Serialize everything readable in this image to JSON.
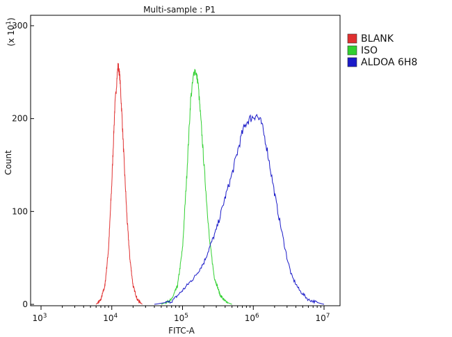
{
  "chart_data": {
    "type": "line",
    "title": "Multi-sample : P1",
    "xlabel": "FITC-A",
    "ylabel": "Count",
    "y_multiplier_label": "(x 10",
    "y_multiplier_exp": "1",
    "y_multiplier_close": ")",
    "x_scale": "log",
    "xlim": [
      1000,
      10000000
    ],
    "ylim": [
      0,
      300
    ],
    "x_ticks": [
      {
        "base": "10",
        "exp": "3",
        "value": 1000
      },
      {
        "base": "10",
        "exp": "4",
        "value": 10000
      },
      {
        "base": "10",
        "exp": "5",
        "value": 100000
      },
      {
        "base": "10",
        "exp": "6",
        "value": 1000000
      },
      {
        "base": "10",
        "exp": "7",
        "value": 10000000
      }
    ],
    "y_ticks": [
      "0",
      "100",
      "200",
      "300"
    ],
    "y_tick_values": [
      0,
      100,
      200,
      300
    ],
    "legend": {
      "placement": "top-right outside"
    },
    "series": [
      {
        "name": "BLANK",
        "color": "#e03030",
        "peak_x": 12300,
        "peak_y": 258,
        "points": [
          [
            6000,
            0
          ],
          [
            7000,
            5
          ],
          [
            8000,
            20
          ],
          [
            9000,
            60
          ],
          [
            10000,
            130
          ],
          [
            11000,
            210
          ],
          [
            12000,
            250
          ],
          [
            12300,
            258
          ],
          [
            13000,
            245
          ],
          [
            14000,
            200
          ],
          [
            15000,
            150
          ],
          [
            16500,
            90
          ],
          [
            18000,
            50
          ],
          [
            20000,
            20
          ],
          [
            23000,
            5
          ],
          [
            27000,
            0
          ]
        ]
      },
      {
        "name": "ISO",
        "color": "#30d030",
        "peak_x": 150000,
        "peak_y": 253,
        "points": [
          [
            50000,
            0
          ],
          [
            70000,
            5
          ],
          [
            85000,
            20
          ],
          [
            100000,
            60
          ],
          [
            115000,
            140
          ],
          [
            130000,
            220
          ],
          [
            145000,
            250
          ],
          [
            150000,
            253
          ],
          [
            165000,
            240
          ],
          [
            185000,
            190
          ],
          [
            210000,
            130
          ],
          [
            240000,
            70
          ],
          [
            280000,
            30
          ],
          [
            340000,
            10
          ],
          [
            400000,
            3
          ],
          [
            500000,
            0
          ]
        ]
      },
      {
        "name": "ALDOA 6H8",
        "color": "#1a1ac8",
        "peak_x": 1100000,
        "peak_y": 204,
        "points": [
          [
            40000,
            0
          ],
          [
            70000,
            3
          ],
          [
            100000,
            15
          ],
          [
            150000,
            30
          ],
          [
            200000,
            45
          ],
          [
            300000,
            80
          ],
          [
            400000,
            115
          ],
          [
            500000,
            140
          ],
          [
            600000,
            165
          ],
          [
            700000,
            185
          ],
          [
            800000,
            196
          ],
          [
            900000,
            200
          ],
          [
            1000000,
            202
          ],
          [
            1100000,
            204
          ],
          [
            1300000,
            195
          ],
          [
            1500000,
            175
          ],
          [
            1800000,
            140
          ],
          [
            2100000,
            110
          ],
          [
            2500000,
            80
          ],
          [
            3000000,
            50
          ],
          [
            3500000,
            30
          ],
          [
            4500000,
            15
          ],
          [
            6000000,
            5
          ],
          [
            8000000,
            2
          ],
          [
            10000000,
            0
          ]
        ]
      }
    ]
  }
}
